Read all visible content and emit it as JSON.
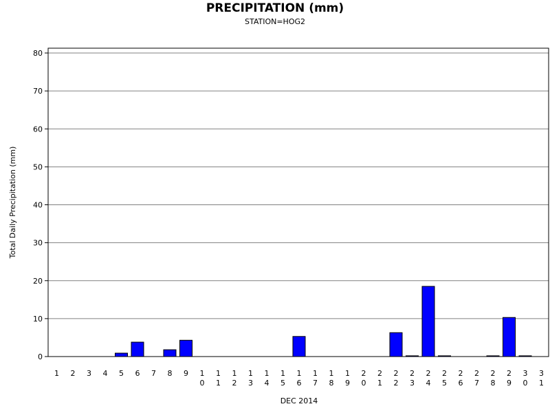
{
  "chart_data": {
    "type": "bar",
    "title": "PRECIPITATION (mm)",
    "subtitle": "STATION=HOG2",
    "xlabel": "DEC 2014",
    "ylabel": "Total Daily Precipitation (mm)",
    "ylim": [
      0,
      80
    ],
    "yticks": [
      0,
      10,
      20,
      30,
      40,
      50,
      60,
      70,
      80
    ],
    "grid": true,
    "bar_color": "#0000ff",
    "categories": [
      "1",
      "2",
      "3",
      "4",
      "5",
      "6",
      "7",
      "8",
      "9",
      "10",
      "11",
      "12",
      "13",
      "14",
      "15",
      "16",
      "17",
      "18",
      "19",
      "20",
      "21",
      "22",
      "23",
      "24",
      "25",
      "26",
      "27",
      "28",
      "29",
      "30",
      "31"
    ],
    "values": [
      0,
      0,
      0,
      0,
      0.9,
      3.8,
      0,
      1.8,
      4.3,
      0,
      0,
      0,
      0,
      0,
      0,
      5.3,
      0,
      0,
      0,
      0,
      0,
      6.3,
      0.2,
      18.5,
      0.2,
      0,
      0,
      0.2,
      10.3,
      0.2,
      0
    ]
  }
}
